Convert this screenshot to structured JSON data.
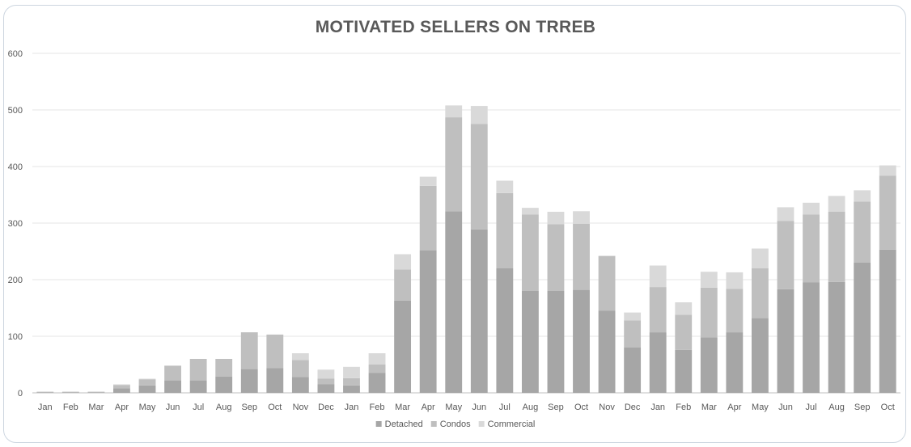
{
  "chart_data": {
    "type": "bar",
    "stacked": true,
    "title": "MOTIVATED SELLERS ON TRREB",
    "xlabel": "",
    "ylabel": "",
    "ylim": [
      0,
      600
    ],
    "yticks": [
      0,
      100,
      200,
      300,
      400,
      500,
      600
    ],
    "grid": true,
    "legend_position": "bottom",
    "categories": [
      "Jan",
      "Feb",
      "Mar",
      "Apr",
      "May",
      "Jun",
      "Jul",
      "Aug",
      "Sep",
      "Oct",
      "Nov",
      "Dec",
      "Jan",
      "Feb",
      "Mar",
      "Apr",
      "May",
      "Jun",
      "Jul",
      "Aug",
      "Sep",
      "Oct",
      "Nov",
      "Dec",
      "Jan",
      "Feb",
      "Mar",
      "Apr",
      "May",
      "Jun",
      "Jul",
      "Aug",
      "Sep",
      "Oct"
    ],
    "series": [
      {
        "name": "Detached",
        "color": "#a6a6a6",
        "values": [
          1,
          1,
          1,
          8,
          13,
          22,
          22,
          29,
          42,
          44,
          28,
          15,
          13,
          35,
          163,
          252,
          321,
          289,
          220,
          180,
          180,
          182,
          145,
          80,
          107,
          76,
          98,
          107,
          132,
          183,
          195,
          196,
          230,
          253
        ]
      },
      {
        "name": "Condos",
        "color": "#bfbfbf",
        "values": [
          1,
          1,
          1,
          6,
          11,
          26,
          38,
          31,
          65,
          59,
          30,
          10,
          13,
          15,
          55,
          114,
          166,
          186,
          133,
          135,
          118,
          117,
          97,
          48,
          80,
          62,
          88,
          77,
          88,
          121,
          120,
          124,
          108,
          131
        ]
      },
      {
        "name": "Commercial",
        "color": "#d9d9d9",
        "values": [
          0,
          0,
          0,
          1,
          1,
          0,
          0,
          0,
          0,
          0,
          12,
          16,
          20,
          20,
          27,
          16,
          21,
          32,
          22,
          12,
          22,
          22,
          0,
          14,
          38,
          22,
          28,
          29,
          35,
          24,
          21,
          28,
          20,
          18
        ]
      }
    ]
  }
}
